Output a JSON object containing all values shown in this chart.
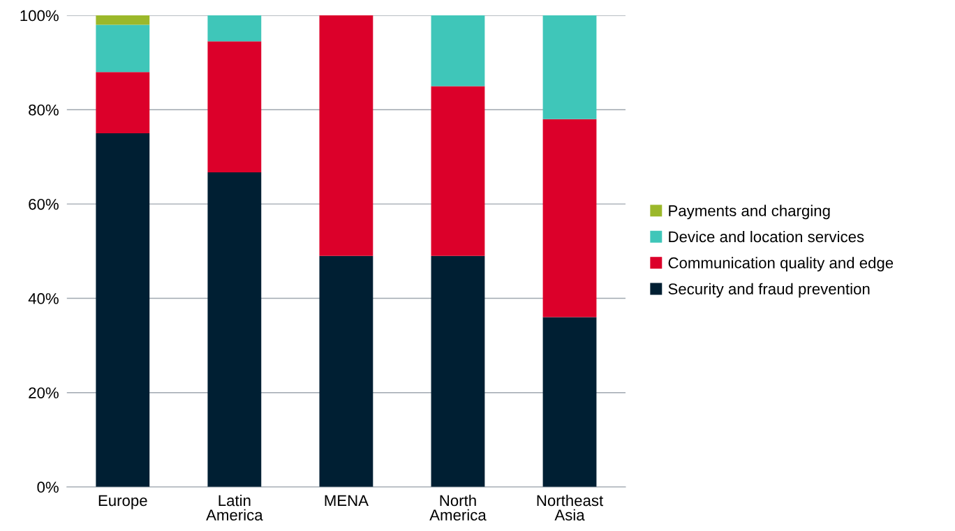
{
  "chart_data": {
    "type": "bar",
    "stacked": true,
    "categories": [
      "Europe",
      "Latin\nAmerica",
      "MENA",
      "North\nAmerica",
      "Northeast\nAsia"
    ],
    "series": [
      {
        "name": "Security and fraud prevention",
        "color": "#001f33",
        "values": [
          75,
          66.7,
          49,
          49,
          36
        ]
      },
      {
        "name": "Communication quality and edge",
        "color": "#dc002a",
        "values": [
          13,
          27.8,
          51,
          36,
          42
        ]
      },
      {
        "name": "Device and location services",
        "color": "#3fc6b9",
        "values": [
          10,
          5.6,
          0,
          15,
          22
        ]
      },
      {
        "name": "Payments and charging",
        "color": "#9bb82a",
        "values": [
          2,
          0,
          0,
          0,
          0
        ]
      }
    ],
    "ylim": [
      0,
      100
    ],
    "yticks": [
      {
        "value": 0,
        "label": "0%"
      },
      {
        "value": 20,
        "label": "20%"
      },
      {
        "value": 40,
        "label": "40%"
      },
      {
        "value": 60,
        "label": "60%"
      },
      {
        "value": 80,
        "label": "80%"
      },
      {
        "value": 100,
        "label": "100%"
      }
    ],
    "grid": "y",
    "legend": "right"
  }
}
